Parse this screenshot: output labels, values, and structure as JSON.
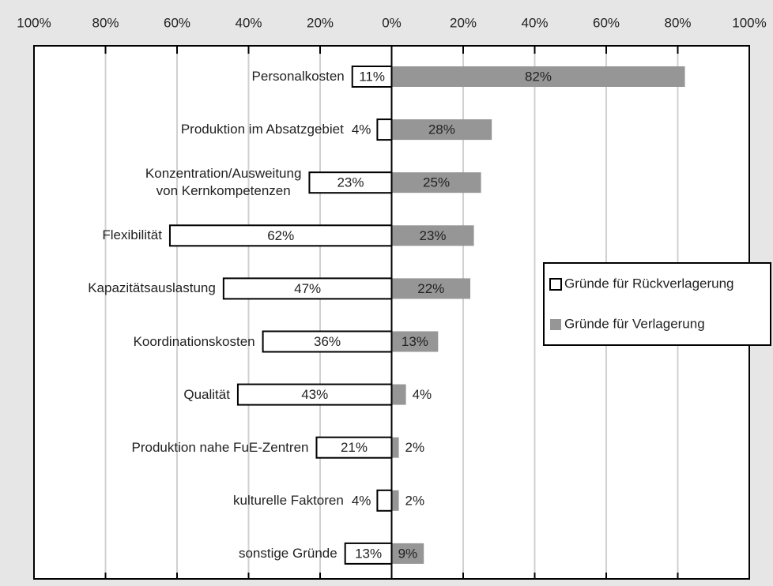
{
  "chart_data": {
    "type": "diverging-bar",
    "categories": [
      "Personalkosten",
      "Produktion im Absatzgebiet",
      "Konzentration/Ausweitung\nvon Kernkompetenzen",
      "Flexibilität",
      "Kapazitätsauslastung",
      "Koordinationskosten",
      "Qualität",
      "Produktion nahe FuE-Zentren",
      "kulturelle Faktoren",
      "sonstige Gründe"
    ],
    "series": [
      {
        "name": "Gründe für Rückverlagerung",
        "color": "#ffffff",
        "values": [
          -11,
          -4,
          -23,
          -62,
          -47,
          -36,
          -43,
          -21,
          -4,
          -13
        ],
        "value_labels": [
          "11%",
          "4%",
          "23%",
          "62%",
          "47%",
          "36%",
          "43%",
          "21%",
          "4%",
          "13%"
        ]
      },
      {
        "name": "Gründe für Verlagerung",
        "color": "#969696",
        "values": [
          82,
          28,
          25,
          23,
          22,
          13,
          4,
          2,
          2,
          9
        ],
        "value_labels": [
          "82%",
          "28%",
          "25%",
          "23%",
          "22%",
          "13%",
          "4%",
          "2%",
          "2%",
          "9%"
        ]
      }
    ],
    "xlim": [
      -100,
      100
    ],
    "xticks": [
      {
        "value": -100,
        "label": "100%"
      },
      {
        "value": -80,
        "label": "80%"
      },
      {
        "value": -60,
        "label": "60%"
      },
      {
        "value": -40,
        "label": "40%"
      },
      {
        "value": -20,
        "label": "20%"
      },
      {
        "value": 0,
        "label": "0%"
      },
      {
        "value": 20,
        "label": "20%"
      },
      {
        "value": 40,
        "label": "40%"
      },
      {
        "value": 60,
        "label": "60%"
      },
      {
        "value": 80,
        "label": "80%"
      },
      {
        "value": 100,
        "label": "100%"
      }
    ],
    "grid": true,
    "legend": "right"
  }
}
